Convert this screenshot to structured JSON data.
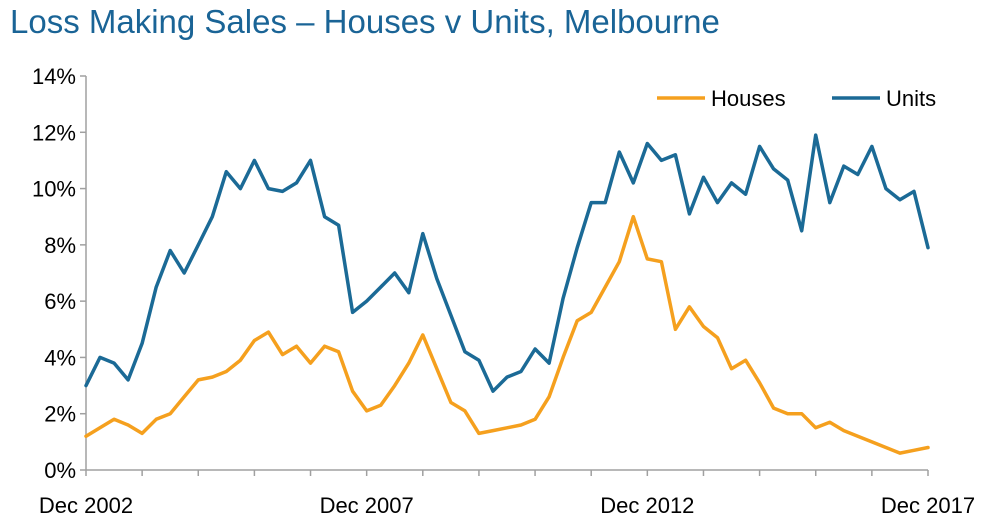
{
  "chart_data": {
    "type": "line",
    "title": "Loss Making Sales – Houses v Units, Melbourne",
    "xlabel": "",
    "ylabel": "",
    "x_start": "Dec 2002",
    "x_end": "Dec 2017",
    "x_ticks": [
      "Dec 2002",
      "Dec 2007",
      "Dec 2012",
      "Dec 2017"
    ],
    "ylim": [
      0,
      14
    ],
    "y_ticks": [
      "0%",
      "2%",
      "4%",
      "6%",
      "8%",
      "10%",
      "12%",
      "14%"
    ],
    "grid": false,
    "legend_position": "top-right",
    "series": [
      {
        "name": "Houses",
        "color": "#f5a01e",
        "x": [
          "Dec 2002",
          "Mar 2003",
          "Jun 2003",
          "Sep 2003",
          "Dec 2003",
          "Mar 2004",
          "Jun 2004",
          "Sep 2004",
          "Dec 2004",
          "Mar 2005",
          "Jun 2005",
          "Sep 2005",
          "Dec 2005",
          "Mar 2006",
          "Jun 2006",
          "Sep 2006",
          "Dec 2006",
          "Mar 2007",
          "Jun 2007",
          "Sep 2007",
          "Dec 2007",
          "Mar 2008",
          "Jun 2008",
          "Sep 2008",
          "Dec 2008",
          "Mar 2009",
          "Jun 2009",
          "Sep 2009",
          "Dec 2009",
          "Mar 2010",
          "Jun 2010",
          "Sep 2010",
          "Dec 2010",
          "Mar 2011",
          "Jun 2011",
          "Sep 2011",
          "Dec 2011",
          "Mar 2012",
          "Jun 2012",
          "Sep 2012",
          "Dec 2012",
          "Mar 2013",
          "Jun 2013",
          "Sep 2013",
          "Dec 2013",
          "Mar 2014",
          "Jun 2014",
          "Sep 2014",
          "Dec 2014",
          "Mar 2015",
          "Jun 2015",
          "Sep 2015",
          "Dec 2015",
          "Mar 2016",
          "Jun 2016",
          "Sep 2016",
          "Dec 2016",
          "Mar 2017",
          "Jun 2017",
          "Sep 2017",
          "Dec 2017"
        ],
        "values": [
          1.2,
          1.5,
          1.8,
          1.6,
          1.3,
          1.8,
          2.0,
          2.6,
          3.2,
          3.3,
          3.5,
          3.9,
          4.6,
          4.9,
          4.1,
          4.4,
          3.8,
          4.4,
          4.2,
          2.8,
          2.1,
          2.3,
          3.0,
          3.8,
          4.8,
          3.6,
          2.4,
          2.1,
          1.3,
          1.4,
          1.5,
          1.6,
          1.8,
          2.6,
          4.0,
          5.3,
          5.6,
          6.5,
          7.4,
          9.0,
          7.5,
          7.4,
          5.0,
          5.8,
          5.1,
          4.7,
          3.6,
          3.9,
          3.1,
          2.2,
          2.0,
          2.0,
          1.5,
          1.7,
          1.4,
          1.2,
          1.0,
          0.8,
          0.6,
          0.7,
          0.8
        ]
      },
      {
        "name": "Units",
        "color": "#1b6a96",
        "x": [
          "Dec 2002",
          "Mar 2003",
          "Jun 2003",
          "Sep 2003",
          "Dec 2003",
          "Mar 2004",
          "Jun 2004",
          "Sep 2004",
          "Dec 2004",
          "Mar 2005",
          "Jun 2005",
          "Sep 2005",
          "Dec 2005",
          "Mar 2006",
          "Jun 2006",
          "Sep 2006",
          "Dec 2006",
          "Mar 2007",
          "Jun 2007",
          "Sep 2007",
          "Dec 2007",
          "Mar 2008",
          "Jun 2008",
          "Sep 2008",
          "Dec 2008",
          "Mar 2009",
          "Jun 2009",
          "Sep 2009",
          "Dec 2009",
          "Mar 2010",
          "Jun 2010",
          "Sep 2010",
          "Dec 2010",
          "Mar 2011",
          "Jun 2011",
          "Sep 2011",
          "Dec 2011",
          "Mar 2012",
          "Jun 2012",
          "Sep 2012",
          "Dec 2012",
          "Mar 2013",
          "Jun 2013",
          "Sep 2013",
          "Dec 2013",
          "Mar 2014",
          "Jun 2014",
          "Sep 2014",
          "Dec 2014",
          "Mar 2015",
          "Jun 2015",
          "Sep 2015",
          "Dec 2015",
          "Mar 2016",
          "Jun 2016",
          "Sep 2016",
          "Dec 2016",
          "Mar 2017",
          "Jun 2017",
          "Sep 2017",
          "Dec 2017"
        ],
        "values": [
          3.0,
          4.0,
          3.8,
          3.2,
          4.5,
          6.5,
          7.8,
          7.0,
          8.0,
          9.0,
          10.6,
          10.0,
          11.0,
          10.0,
          9.9,
          10.2,
          11.0,
          9.0,
          8.7,
          5.6,
          6.0,
          6.5,
          7.0,
          6.3,
          8.4,
          6.8,
          5.5,
          4.2,
          3.9,
          2.8,
          3.3,
          3.5,
          4.3,
          3.8,
          6.1,
          7.9,
          9.5,
          9.5,
          11.3,
          10.2,
          11.6,
          11.0,
          11.2,
          9.1,
          10.4,
          9.5,
          10.2,
          9.8,
          11.5,
          10.7,
          10.3,
          8.5,
          11.9,
          9.5,
          10.8,
          10.5,
          11.5,
          10.0,
          9.6,
          9.9,
          7.9
        ]
      }
    ]
  }
}
